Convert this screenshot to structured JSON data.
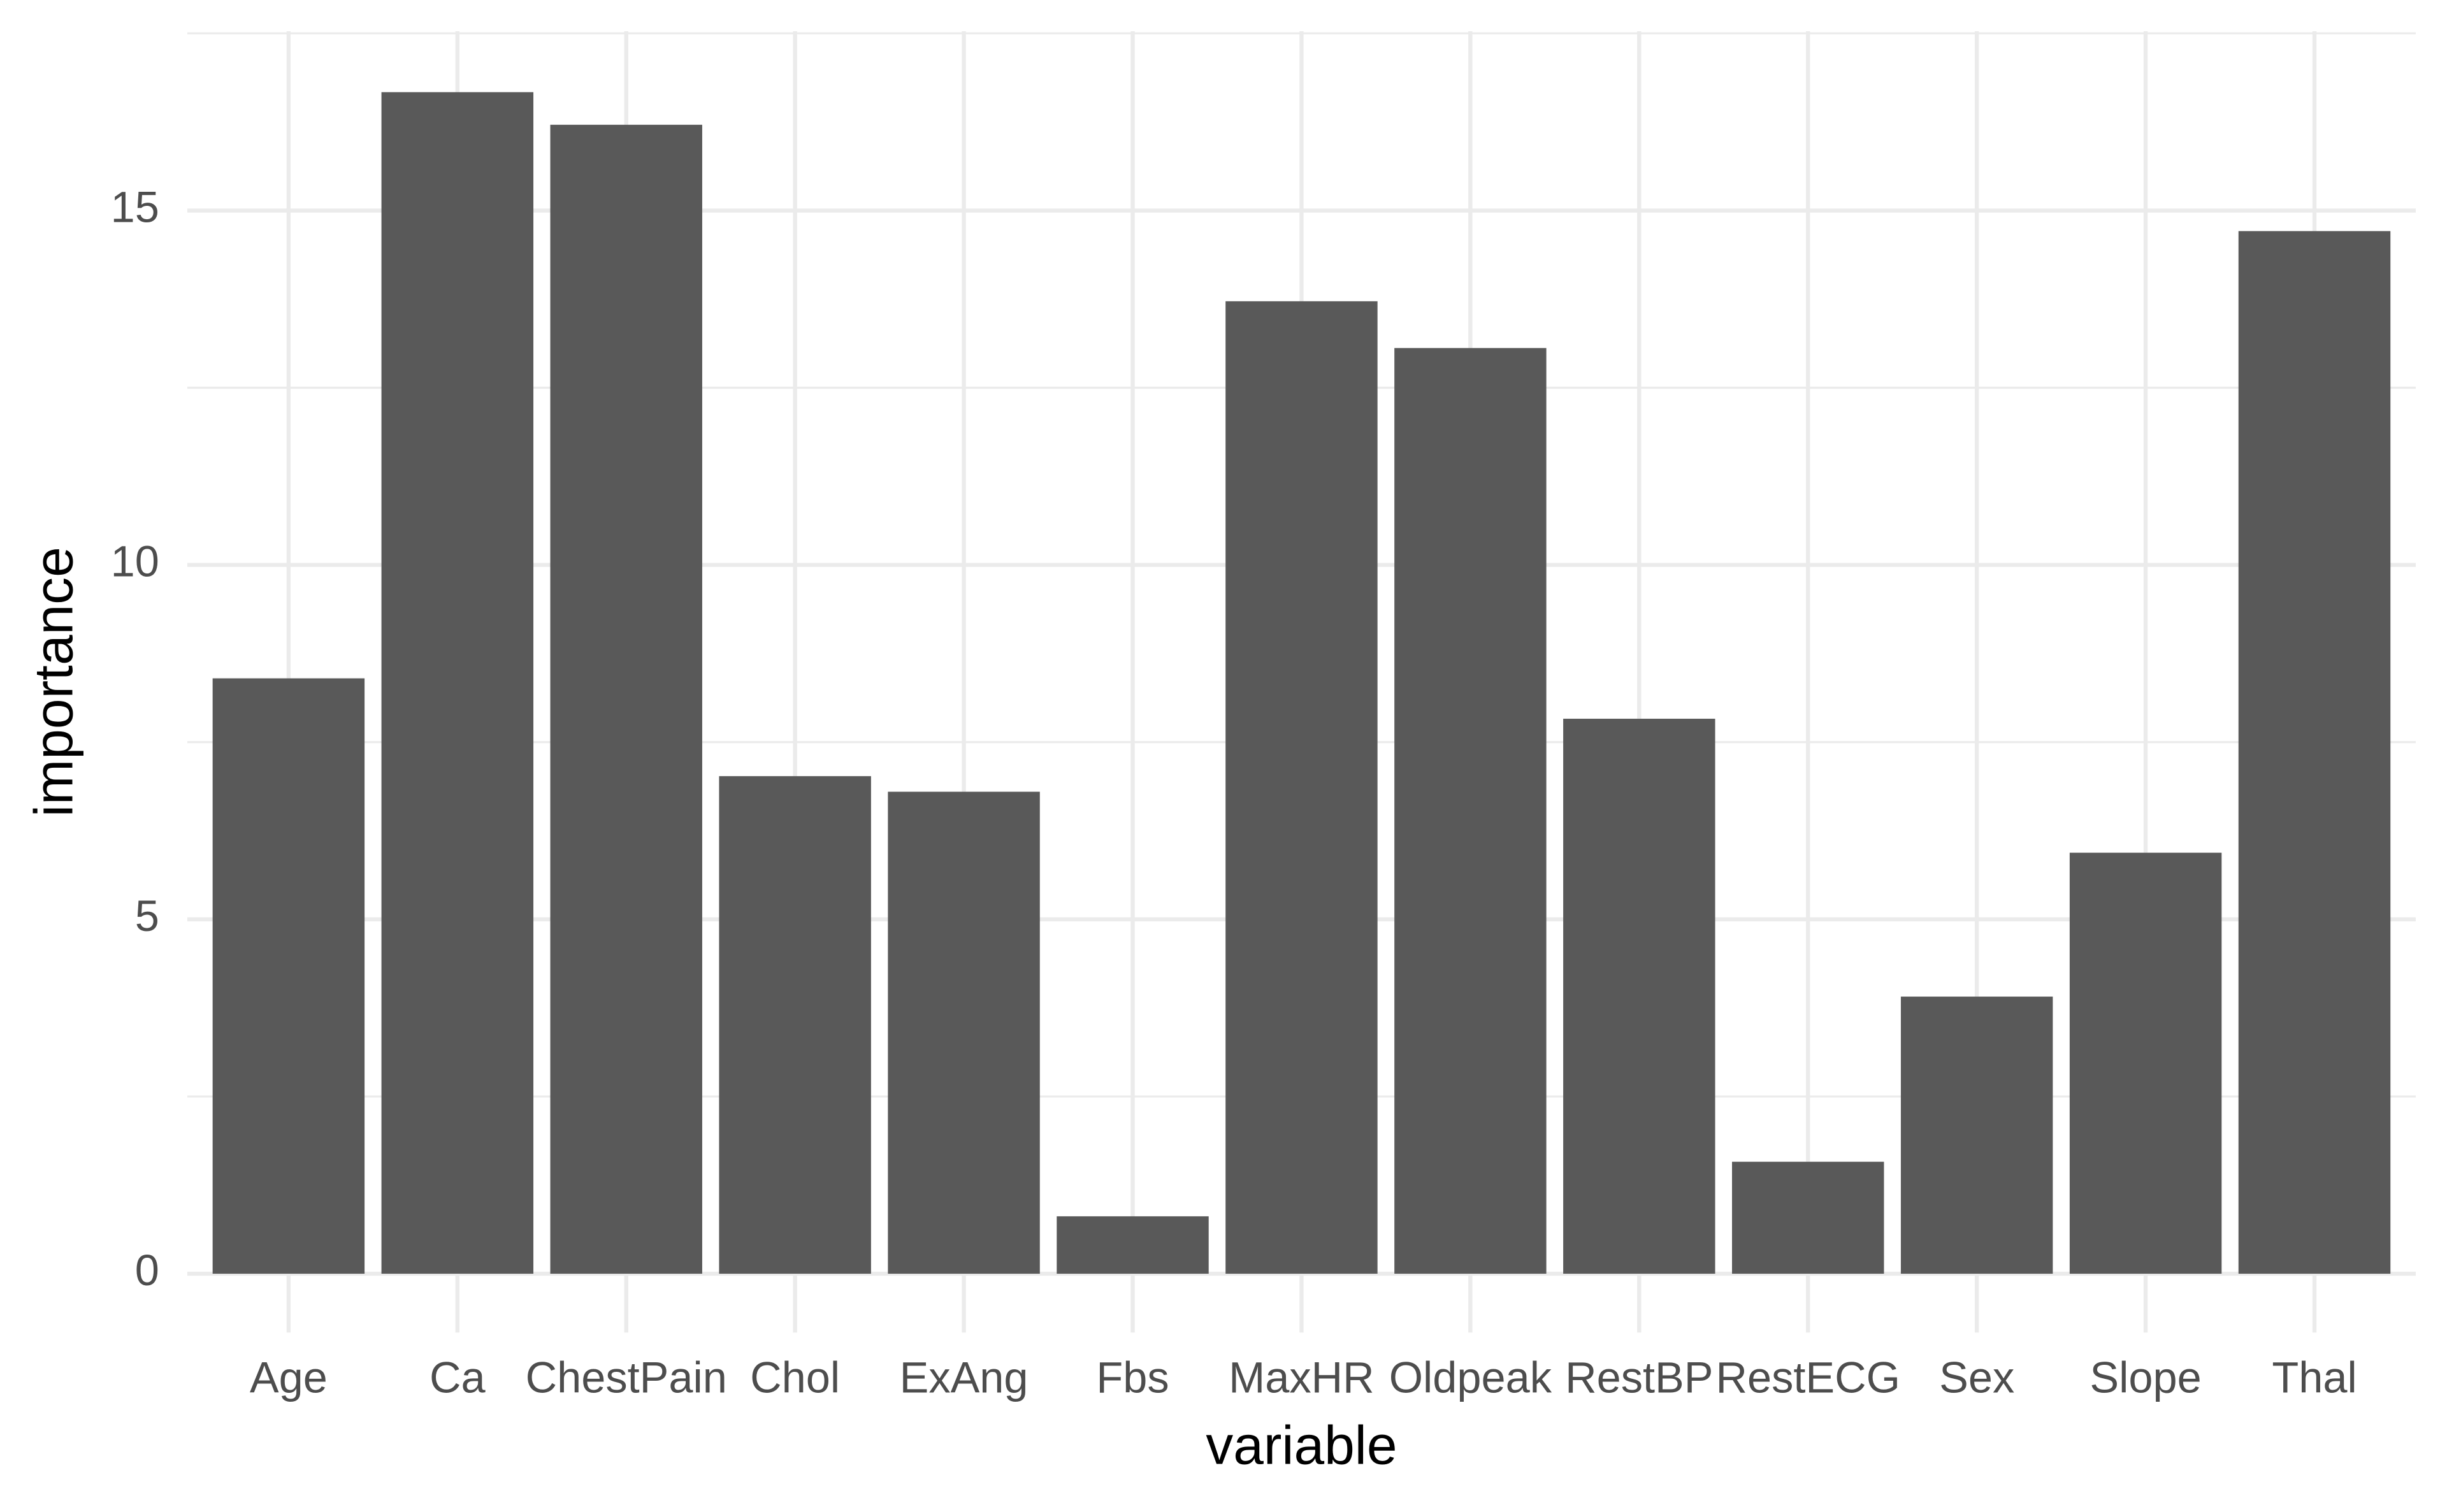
{
  "chart_data": {
    "type": "bar",
    "x_label": "variable",
    "y_label": "importance",
    "categories": [
      "Age",
      "Ca",
      "ChestPain",
      "Chol",
      "ExAng",
      "Fbs",
      "MaxHR",
      "Oldpeak",
      "RestBP",
      "RestECG",
      "Sex",
      "Slope",
      "Thal"
    ],
    "values": [
      8.4,
      16.67,
      16.21,
      7.02,
      6.8,
      0.81,
      13.72,
      13.06,
      7.83,
      1.58,
      3.91,
      5.94,
      14.71
    ],
    "color": "#595959",
    "ylim": [
      -0.83,
      17.53
    ],
    "yticks": [
      0,
      5,
      10,
      15
    ],
    "yticks_minor": [
      2.5,
      7.5,
      12.5,
      17.5
    ],
    "grid": true
  }
}
